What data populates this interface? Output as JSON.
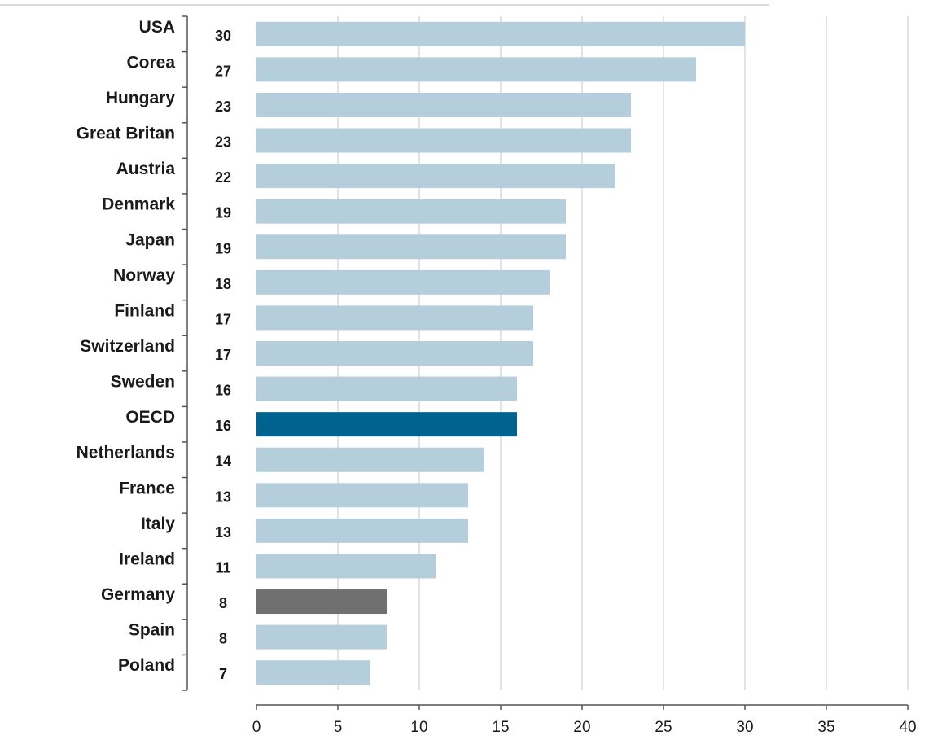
{
  "chart_data": {
    "type": "bar",
    "orientation": "horizontal",
    "title": "",
    "xlabel": "",
    "ylabel": "",
    "categories": [
      "USA",
      "Corea",
      "Hungary",
      "Great Britan",
      "Austria",
      "Denmark",
      "Japan",
      "Norway",
      "Finland",
      "Switzerland",
      "Sweden",
      "OECD",
      "Netherlands",
      "France",
      "Italy",
      "Ireland",
      "Germany",
      "Spain",
      "Poland"
    ],
    "values": [
      30,
      27,
      23,
      23,
      22,
      19,
      19,
      18,
      17,
      17,
      16,
      16,
      14,
      13,
      13,
      11,
      8,
      8,
      7
    ],
    "value_labels": [
      "30",
      "27",
      "23",
      "23",
      "22",
      "19",
      "19",
      "18",
      "17",
      "17",
      "16",
      "16",
      "14",
      "13",
      "13",
      "11",
      "8",
      "8",
      "7"
    ],
    "xlim": [
      0,
      40
    ],
    "xticks": [
      0,
      5,
      10,
      15,
      20,
      25,
      30,
      35,
      40
    ],
    "xtick_labels": [
      "0",
      "5",
      "10",
      "15",
      "20",
      "25",
      "30",
      "35",
      "40"
    ],
    "grid": "vertical",
    "colors": {
      "default": "#b5cedc",
      "OECD": "#00628f",
      "Germany": "#707070",
      "grid": "#c4c4c4",
      "axis": "#555555"
    }
  }
}
